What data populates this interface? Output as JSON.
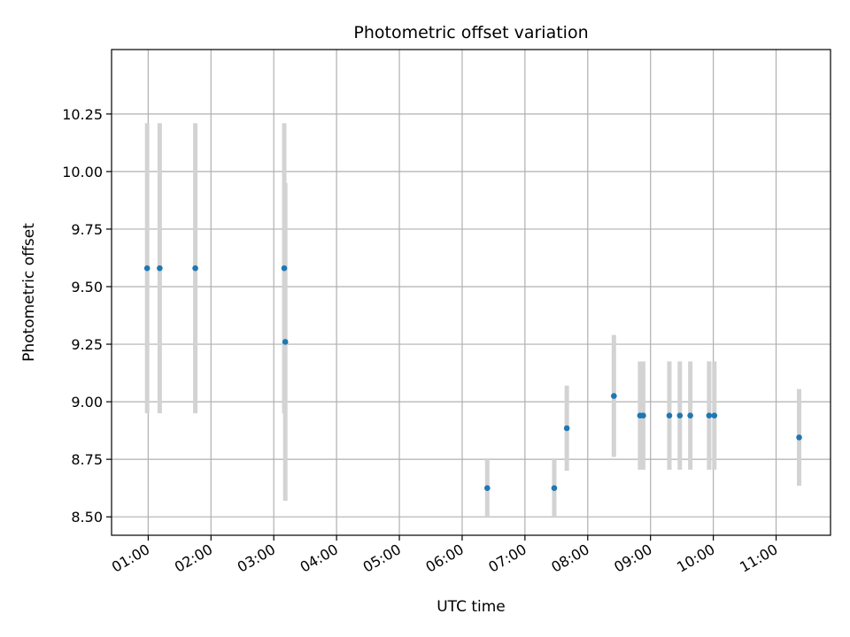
{
  "chart_data": {
    "type": "scatter",
    "title": "Photometric offset variation",
    "xlabel": "UTC time",
    "ylabel": "Photometric offset",
    "x_ticks": [
      "01:00",
      "02:00",
      "03:00",
      "04:00",
      "05:00",
      "06:00",
      "07:00",
      "08:00",
      "09:00",
      "10:00",
      "11:00"
    ],
    "y_ticks": [
      "8.50",
      "8.75",
      "9.00",
      "9.25",
      "9.50",
      "9.75",
      "10.00",
      "10.25"
    ],
    "xlim": [
      "00:25",
      "11:52"
    ],
    "ylim": [
      8.42,
      10.53
    ],
    "grid": true,
    "marker_color": "#1f77b4",
    "errorbar_color": "#d3d3d3",
    "points": [
      {
        "x": "00:59",
        "y": 9.58,
        "err": 0.63
      },
      {
        "x": "01:11",
        "y": 9.58,
        "err": 0.63
      },
      {
        "x": "01:45",
        "y": 9.58,
        "err": 0.63
      },
      {
        "x": "03:10",
        "y": 9.58,
        "err": 0.63
      },
      {
        "x": "03:11",
        "y": 9.26,
        "err": 0.69
      },
      {
        "x": "06:24",
        "y": 8.625,
        "err": 0.125
      },
      {
        "x": "07:28",
        "y": 8.625,
        "err": 0.125
      },
      {
        "x": "07:40",
        "y": 8.885,
        "err": 0.185
      },
      {
        "x": "08:25",
        "y": 9.025,
        "err": 0.265
      },
      {
        "x": "08:50",
        "y": 8.94,
        "err": 0.235
      },
      {
        "x": "08:53",
        "y": 8.94,
        "err": 0.235
      },
      {
        "x": "09:18",
        "y": 8.94,
        "err": 0.235
      },
      {
        "x": "09:28",
        "y": 8.94,
        "err": 0.235
      },
      {
        "x": "09:38",
        "y": 8.94,
        "err": 0.235
      },
      {
        "x": "09:56",
        "y": 8.94,
        "err": 0.235
      },
      {
        "x": "10:01",
        "y": 8.94,
        "err": 0.235
      },
      {
        "x": "11:22",
        "y": 8.845,
        "err": 0.21
      }
    ]
  }
}
